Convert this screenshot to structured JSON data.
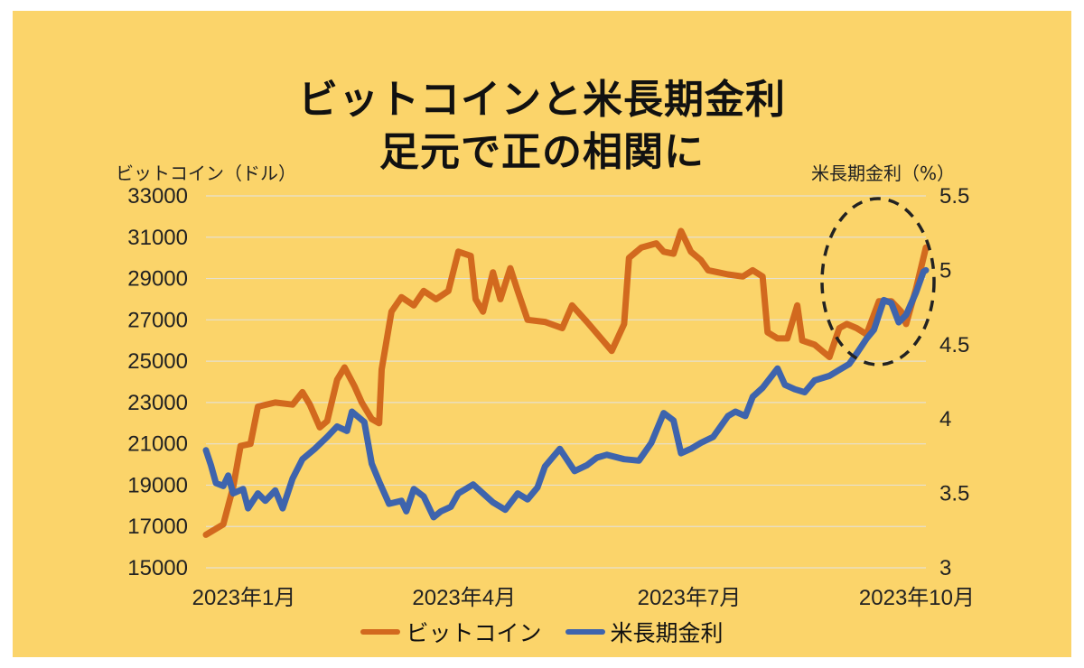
{
  "chart_data": {
    "type": "line",
    "title": "ビットコインと米長期金利",
    "subtitle": "足元で正の相関に",
    "ylabel_left": "ビットコイン（ドル）",
    "ylabel_right": "米長期金利（%）",
    "ylim_left": [
      15000,
      33000
    ],
    "ylim_right": [
      3,
      5.5
    ],
    "yticks_left": [
      "33000",
      "31000",
      "29000",
      "27000",
      "25000",
      "23000",
      "21000",
      "19000",
      "17000",
      "15000"
    ],
    "yticks_right": [
      "5.5",
      "5",
      "4.5",
      "4",
      "3.5",
      "3"
    ],
    "xticks": [
      "2023年1月",
      "2023年4月",
      "2023年7月",
      "2023年10月"
    ],
    "x_range": [
      "2023-01-02",
      "2023-10-20"
    ],
    "grid": true,
    "annotation": "dashed ellipse highlighting October 2023",
    "series": [
      {
        "name": "ビットコイン",
        "axis": "left",
        "color": "#d2691e",
        "points": [
          [
            "2023-01-02",
            16600
          ],
          [
            "2023-01-09",
            17100
          ],
          [
            "2023-01-13",
            18900
          ],
          [
            "2023-01-16",
            20900
          ],
          [
            "2023-01-20",
            21000
          ],
          [
            "2023-01-23",
            22800
          ],
          [
            "2023-01-30",
            23000
          ],
          [
            "2023-02-06",
            22900
          ],
          [
            "2023-02-10",
            23500
          ],
          [
            "2023-02-13",
            22900
          ],
          [
            "2023-02-17",
            21800
          ],
          [
            "2023-02-20",
            22100
          ],
          [
            "2023-02-24",
            24100
          ],
          [
            "2023-02-27",
            24700
          ],
          [
            "2023-03-03",
            23800
          ],
          [
            "2023-03-06",
            23000
          ],
          [
            "2023-03-10",
            22200
          ],
          [
            "2023-03-13",
            22000
          ],
          [
            "2023-03-14",
            24600
          ],
          [
            "2023-03-18",
            27400
          ],
          [
            "2023-03-22",
            28100
          ],
          [
            "2023-03-27",
            27700
          ],
          [
            "2023-03-31",
            28400
          ],
          [
            "2023-04-05",
            28000
          ],
          [
            "2023-04-10",
            28400
          ],
          [
            "2023-04-14",
            30300
          ],
          [
            "2023-04-19",
            30100
          ],
          [
            "2023-04-21",
            28000
          ],
          [
            "2023-04-24",
            27400
          ],
          [
            "2023-04-28",
            29300
          ],
          [
            "2023-05-01",
            28000
          ],
          [
            "2023-05-05",
            29500
          ],
          [
            "2023-05-08",
            28400
          ],
          [
            "2023-05-12",
            27000
          ],
          [
            "2023-05-19",
            26900
          ],
          [
            "2023-05-26",
            26600
          ],
          [
            "2023-05-30",
            27700
          ],
          [
            "2023-06-05",
            26900
          ],
          [
            "2023-06-10",
            26200
          ],
          [
            "2023-06-15",
            25500
          ],
          [
            "2023-06-20",
            26800
          ],
          [
            "2023-06-22",
            30000
          ],
          [
            "2023-06-27",
            30500
          ],
          [
            "2023-07-03",
            30700
          ],
          [
            "2023-07-06",
            30300
          ],
          [
            "2023-07-10",
            30200
          ],
          [
            "2023-07-13",
            31300
          ],
          [
            "2023-07-17",
            30300
          ],
          [
            "2023-07-21",
            29900
          ],
          [
            "2023-07-24",
            29400
          ],
          [
            "2023-07-28",
            29300
          ],
          [
            "2023-08-01",
            29200
          ],
          [
            "2023-08-07",
            29100
          ],
          [
            "2023-08-11",
            29400
          ],
          [
            "2023-08-15",
            29100
          ],
          [
            "2023-08-17",
            26400
          ],
          [
            "2023-08-21",
            26100
          ],
          [
            "2023-08-25",
            26100
          ],
          [
            "2023-08-29",
            27700
          ],
          [
            "2023-08-31",
            26000
          ],
          [
            "2023-09-05",
            25800
          ],
          [
            "2023-09-11",
            25200
          ],
          [
            "2023-09-15",
            26600
          ],
          [
            "2023-09-18",
            26800
          ],
          [
            "2023-09-22",
            26600
          ],
          [
            "2023-09-26",
            26300
          ],
          [
            "2023-10-01",
            27900
          ],
          [
            "2023-10-06",
            27900
          ],
          [
            "2023-10-10",
            27400
          ],
          [
            "2023-10-12",
            26800
          ],
          [
            "2023-10-16",
            28500
          ],
          [
            "2023-10-20",
            30500
          ]
        ]
      },
      {
        "name": "米長期金利",
        "axis": "right",
        "color": "#3e64ad",
        "points": [
          [
            "2023-01-02",
            3.79
          ],
          [
            "2023-01-04",
            3.69
          ],
          [
            "2023-01-06",
            3.57
          ],
          [
            "2023-01-09",
            3.55
          ],
          [
            "2023-01-11",
            3.62
          ],
          [
            "2023-01-13",
            3.5
          ],
          [
            "2023-01-17",
            3.53
          ],
          [
            "2023-01-19",
            3.4
          ],
          [
            "2023-01-23",
            3.5
          ],
          [
            "2023-01-26",
            3.45
          ],
          [
            "2023-01-30",
            3.52
          ],
          [
            "2023-02-02",
            3.4
          ],
          [
            "2023-02-06",
            3.6
          ],
          [
            "2023-02-10",
            3.73
          ],
          [
            "2023-02-15",
            3.8
          ],
          [
            "2023-02-20",
            3.88
          ],
          [
            "2023-02-24",
            3.95
          ],
          [
            "2023-02-28",
            3.92
          ],
          [
            "2023-03-02",
            4.05
          ],
          [
            "2023-03-07",
            3.98
          ],
          [
            "2023-03-10",
            3.7
          ],
          [
            "2023-03-13",
            3.58
          ],
          [
            "2023-03-17",
            3.43
          ],
          [
            "2023-03-22",
            3.45
          ],
          [
            "2023-03-24",
            3.38
          ],
          [
            "2023-03-27",
            3.53
          ],
          [
            "2023-03-31",
            3.48
          ],
          [
            "2023-04-04",
            3.34
          ],
          [
            "2023-04-07",
            3.38
          ],
          [
            "2023-04-11",
            3.41
          ],
          [
            "2023-04-14",
            3.5
          ],
          [
            "2023-04-20",
            3.56
          ],
          [
            "2023-04-24",
            3.5
          ],
          [
            "2023-04-28",
            3.44
          ],
          [
            "2023-05-03",
            3.39
          ],
          [
            "2023-05-08",
            3.5
          ],
          [
            "2023-05-12",
            3.46
          ],
          [
            "2023-05-16",
            3.54
          ],
          [
            "2023-05-19",
            3.68
          ],
          [
            "2023-05-25",
            3.8
          ],
          [
            "2023-05-31",
            3.65
          ],
          [
            "2023-06-05",
            3.69
          ],
          [
            "2023-06-09",
            3.74
          ],
          [
            "2023-06-13",
            3.76
          ],
          [
            "2023-06-20",
            3.73
          ],
          [
            "2023-06-26",
            3.72
          ],
          [
            "2023-07-01",
            3.84
          ],
          [
            "2023-07-06",
            4.04
          ],
          [
            "2023-07-10",
            3.99
          ],
          [
            "2023-07-13",
            3.77
          ],
          [
            "2023-07-17",
            3.8
          ],
          [
            "2023-07-21",
            3.84
          ],
          [
            "2023-07-26",
            3.88
          ],
          [
            "2023-08-01",
            4.02
          ],
          [
            "2023-08-04",
            4.05
          ],
          [
            "2023-08-08",
            4.02
          ],
          [
            "2023-08-11",
            4.15
          ],
          [
            "2023-08-15",
            4.21
          ],
          [
            "2023-08-21",
            4.34
          ],
          [
            "2023-08-24",
            4.23
          ],
          [
            "2023-08-28",
            4.2
          ],
          [
            "2023-09-01",
            4.18
          ],
          [
            "2023-09-05",
            4.26
          ],
          [
            "2023-09-11",
            4.29
          ],
          [
            "2023-09-15",
            4.33
          ],
          [
            "2023-09-19",
            4.37
          ],
          [
            "2023-09-22",
            4.44
          ],
          [
            "2023-09-26",
            4.54
          ],
          [
            "2023-09-29",
            4.6
          ],
          [
            "2023-10-03",
            4.8
          ],
          [
            "2023-10-06",
            4.78
          ],
          [
            "2023-10-09",
            4.65
          ],
          [
            "2023-10-12",
            4.7
          ],
          [
            "2023-10-16",
            4.85
          ],
          [
            "2023-10-19",
            4.99
          ],
          [
            "2023-10-20",
            5.0
          ]
        ]
      }
    ],
    "legend": [
      "ビットコイン",
      "米長期金利"
    ],
    "legend_position": "bottom"
  }
}
